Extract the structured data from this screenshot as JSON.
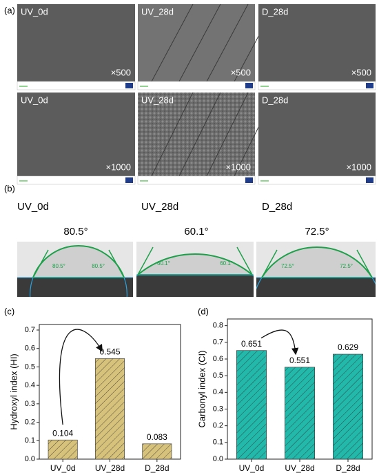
{
  "panels": [
    "(a)",
    "(b)",
    "(c)",
    "(d)"
  ],
  "sem": {
    "rows": [
      {
        "magnification": "×500",
        "samples": [
          "UV_0d",
          "UV_28d",
          "D_28d"
        ]
      },
      {
        "magnification": "×1000",
        "samples": [
          "UV_0d",
          "UV_28d",
          "D_28d"
        ]
      }
    ]
  },
  "contact_angle": {
    "samples": [
      "UV_0d",
      "UV_28d",
      "D_28d"
    ],
    "angles": [
      "80.5°",
      "60.1°",
      "72.5°"
    ]
  },
  "chart_data": [
    {
      "type": "bar",
      "ylabel": "Hydroxyl index (HI)",
      "categories": [
        "UV_0d",
        "UV_28d",
        "D_28d"
      ],
      "values": [
        0.104,
        0.545,
        0.083
      ],
      "color": "#d6c27a",
      "ylim": [
        0,
        0.73
      ],
      "yticks": [
        {
          "value": 0,
          "label": "0.0"
        },
        0.1,
        0.2,
        0.3,
        0.4,
        0.5,
        0.6,
        0.7
      ]
    },
    {
      "type": "bar",
      "ylabel": "Carbonyl index (CI)",
      "categories": [
        "UV_0d",
        "UV_28d",
        "D_28d"
      ],
      "values": [
        0.651,
        0.551,
        0.629
      ],
      "color": "#22b8aa",
      "ylim": [
        0,
        0.84
      ],
      "yticks": [
        {
          "value": 0,
          "label": "0.0"
        },
        0.1,
        0.2,
        0.3,
        0.4,
        0.5,
        0.6,
        0.7,
        0.8
      ]
    }
  ]
}
